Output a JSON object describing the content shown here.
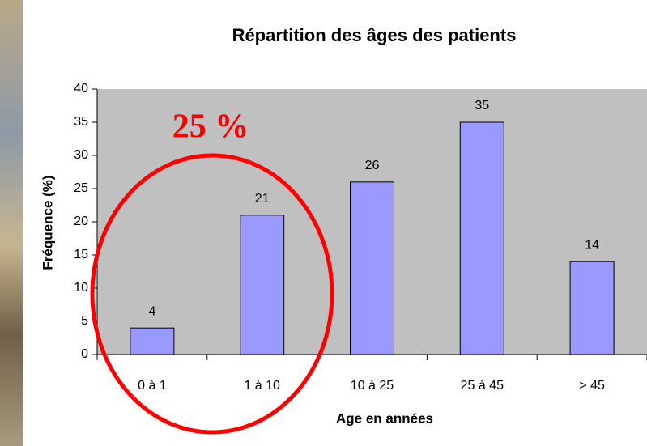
{
  "chart_data": {
    "type": "bar",
    "title": "Répartition des âges des patients",
    "x_label": "Age en années",
    "y_label": "Fréquence (%)",
    "categories": [
      "0 à 1",
      "1 à 10",
      "10 à 25",
      "25 à 45",
      "> 45"
    ],
    "values": [
      4,
      21,
      26,
      35,
      14
    ],
    "color": "#9999ff",
    "ylim": [
      0,
      40
    ],
    "yticks": [
      0,
      5,
      10,
      15,
      20,
      25,
      30,
      35,
      40
    ],
    "annotation": "25 %"
  }
}
